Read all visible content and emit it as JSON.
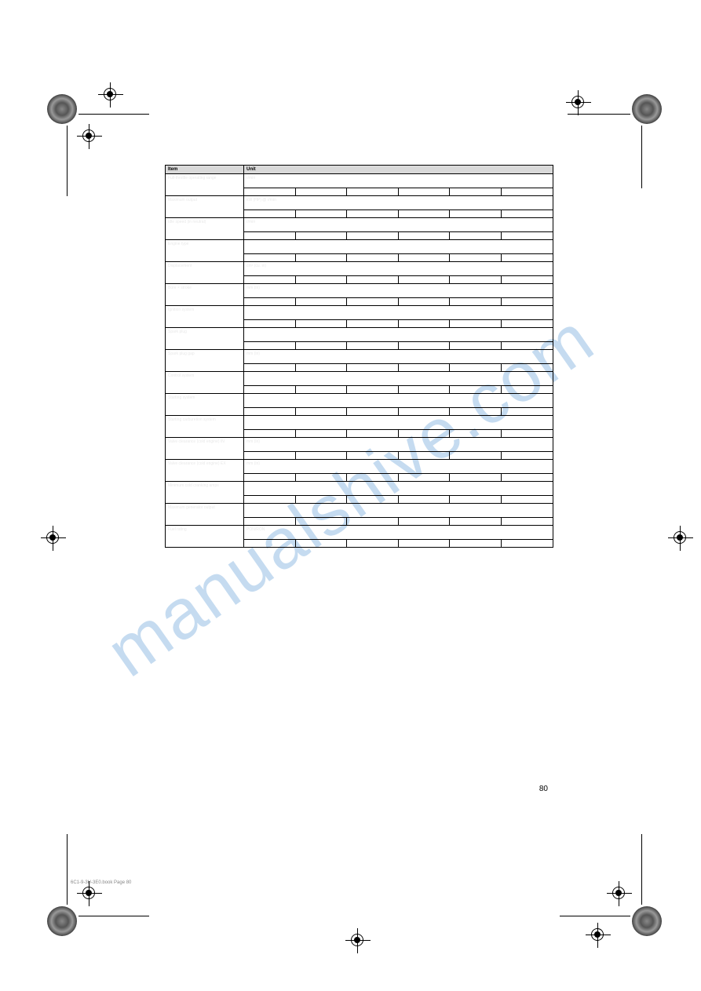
{
  "watermark": {
    "text": "manualshive.com",
    "color": "#5b9bd5"
  },
  "table": {
    "header_bg": "#d9d9d9",
    "border_color": "#000000",
    "rows": [
      {
        "type": "header",
        "label": "Item",
        "desc": "Unit"
      },
      {
        "type": "group",
        "label": "Full-throttle operating range",
        "desc_top": "r/min",
        "cells": [
          "",
          "",
          "",
          "",
          "",
          ""
        ]
      },
      {
        "type": "group",
        "label": "Maximum output",
        "desc_top": "kW (HP) @ r/min",
        "cells": [
          "",
          "",
          "",
          "",
          "",
          ""
        ]
      },
      {
        "type": "group",
        "label": "Idle speed (in neutral)",
        "desc_top": "r/min",
        "cells": [
          "",
          "",
          "",
          "",
          "",
          ""
        ]
      },
      {
        "type": "group",
        "label": "Engine type",
        "desc_top": "",
        "cells": [
          "",
          "",
          "",
          "",
          "",
          ""
        ]
      },
      {
        "type": "group",
        "label": "Displacement",
        "desc_top": "cm³ (cu. in)",
        "cells": [
          "",
          "",
          "",
          "",
          "",
          ""
        ]
      },
      {
        "type": "group",
        "label": "Bore × stroke",
        "desc_top": "mm (in)",
        "cells": [
          "",
          "",
          "",
          "",
          "",
          ""
        ]
      },
      {
        "type": "group",
        "label": "Ignition system",
        "desc_top": "",
        "cells": [
          "",
          "",
          "",
          "",
          "",
          ""
        ]
      },
      {
        "type": "group",
        "label": "Spark plug",
        "desc_top": "",
        "cells": [
          "",
          "",
          "",
          "",
          "",
          ""
        ]
      },
      {
        "type": "group",
        "label": "Spark plug gap",
        "desc_top": "mm (in)",
        "cells": [
          "",
          "",
          "",
          "",
          "",
          ""
        ]
      },
      {
        "type": "group",
        "label": "Control system",
        "desc_top": "",
        "cells": [
          "",
          "",
          "",
          "",
          "",
          ""
        ]
      },
      {
        "type": "group",
        "label": "Starting system",
        "desc_top": "",
        "cells": [
          "",
          "",
          "",
          "",
          "",
          ""
        ]
      },
      {
        "type": "group",
        "label": "Starting carburetion system",
        "desc_top": "",
        "cells": [
          "",
          "",
          "",
          "",
          "",
          ""
        ]
      },
      {
        "type": "group",
        "label": "Valve clearance (cold engine) IN",
        "desc_top": "mm (in)",
        "cells": [
          "",
          "",
          "",
          "",
          "",
          ""
        ]
      },
      {
        "type": "group",
        "label": "Valve clearance (cold engine) EX",
        "desc_top": "mm (in)",
        "cells": [
          "",
          "",
          "",
          "",
          "",
          ""
        ]
      },
      {
        "type": "group",
        "label": "Minimum cold cranking amps",
        "desc_top": "",
        "cells": [
          "",
          "",
          "",
          "",
          "",
          ""
        ]
      },
      {
        "type": "group",
        "label": "Maximum generator output",
        "desc_top": "",
        "cells": [
          "",
          "",
          "",
          "",
          "",
          ""
        ]
      },
      {
        "type": "group",
        "label": "Fuel rating",
        "desc_top": "PON/RON",
        "cells": [
          "",
          "",
          "",
          "",
          "",
          ""
        ]
      }
    ]
  },
  "page_number": "80",
  "footer": "6C1-9-3H-3E0.book  Page 80"
}
